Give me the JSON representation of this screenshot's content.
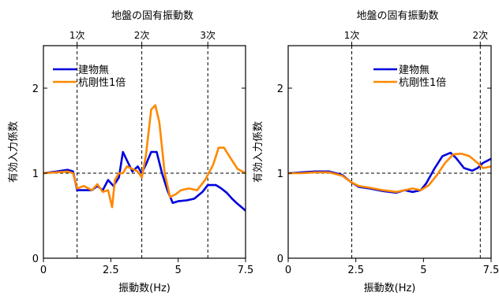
{
  "chart_data": [
    {
      "type": "line",
      "title": "地盤の固有振動数",
      "xlabel": "振動数(Hz)",
      "ylabel": "有効入力係数",
      "xlim": [
        0,
        7.5
      ],
      "ylim": [
        0,
        2.5
      ],
      "xticks": [
        0,
        2.5,
        5,
        7.5
      ],
      "xtick_labels": [
        "0",
        "2.5",
        "5",
        "7.5"
      ],
      "yticks": [
        0,
        1,
        2
      ],
      "ytick_labels": [
        "0",
        "1",
        "2"
      ],
      "reference_line_y": 1,
      "natural_frequencies": [
        {
          "x": 1.25,
          "label": "1次"
        },
        {
          "x": 3.65,
          "label": "2次"
        },
        {
          "x": 6.1,
          "label": "3次"
        }
      ],
      "legend_position": "top-left",
      "grid": false,
      "series": [
        {
          "name": "建物無",
          "color": "#0000dd",
          "x": [
            0,
            0.5,
            0.9,
            1.1,
            1.25,
            1.5,
            1.8,
            2.0,
            2.2,
            2.4,
            2.6,
            2.8,
            2.95,
            3.1,
            3.3,
            3.5,
            3.65,
            3.8,
            4.0,
            4.2,
            4.4,
            4.6,
            4.8,
            5.0,
            5.3,
            5.6,
            5.9,
            6.1,
            6.4,
            6.6,
            6.8,
            7.0,
            7.2,
            7.5
          ],
          "y": [
            1.0,
            1.02,
            1.04,
            1.02,
            0.8,
            0.8,
            0.8,
            0.85,
            0.8,
            0.92,
            0.85,
            0.95,
            1.25,
            1.15,
            1.02,
            1.08,
            1.0,
            1.1,
            1.25,
            1.25,
            1.0,
            0.8,
            0.65,
            0.67,
            0.68,
            0.7,
            0.78,
            0.86,
            0.86,
            0.82,
            0.77,
            0.7,
            0.64,
            0.56
          ]
        },
        {
          "name": "杭剛性1倍",
          "color": "#ff8800",
          "x": [
            0,
            0.5,
            0.9,
            1.1,
            1.25,
            1.5,
            1.8,
            2.0,
            2.2,
            2.4,
            2.55,
            2.65,
            2.8,
            2.95,
            3.1,
            3.3,
            3.5,
            3.65,
            3.8,
            4.0,
            4.15,
            4.3,
            4.5,
            4.7,
            4.9,
            5.1,
            5.4,
            5.7,
            6.0,
            6.3,
            6.5,
            6.7,
            6.9,
            7.2,
            7.5
          ],
          "y": [
            1.0,
            1.01,
            1.02,
            1.0,
            0.82,
            0.85,
            0.8,
            0.87,
            0.78,
            0.8,
            0.6,
            0.92,
            1.0,
            1.0,
            1.08,
            1.05,
            1.02,
            0.95,
            1.2,
            1.75,
            1.8,
            1.6,
            1.0,
            0.72,
            0.75,
            0.8,
            0.82,
            0.8,
            0.92,
            1.1,
            1.3,
            1.3,
            1.2,
            1.05,
            1.0
          ]
        }
      ]
    },
    {
      "type": "line",
      "title": "地盤の固有振動数",
      "xlabel": "振動数(Hz)",
      "ylabel": "有効入力係数",
      "xlim": [
        0,
        7.5
      ],
      "ylim": [
        0,
        2.5
      ],
      "xticks": [
        0,
        2.5,
        5,
        7.5
      ],
      "xtick_labels": [
        "0",
        "2.5",
        "5",
        "7.5"
      ],
      "yticks": [
        0,
        1,
        2
      ],
      "ytick_labels": [
        "0",
        "1",
        "2"
      ],
      "reference_line_y": 1,
      "natural_frequencies": [
        {
          "x": 2.35,
          "label": "1次"
        },
        {
          "x": 7.1,
          "label": "2次"
        }
      ],
      "legend_position": "top-center",
      "grid": false,
      "series": [
        {
          "name": "建物無",
          "color": "#0000dd",
          "x": [
            0,
            0.5,
            1.0,
            1.5,
            2.0,
            2.3,
            2.6,
            3.0,
            3.5,
            4.0,
            4.3,
            4.6,
            4.9,
            5.1,
            5.4,
            5.7,
            6.0,
            6.2,
            6.5,
            6.8,
            7.0,
            7.2,
            7.5
          ],
          "y": [
            1.0,
            1.01,
            1.02,
            1.02,
            0.98,
            0.9,
            0.84,
            0.82,
            0.79,
            0.77,
            0.8,
            0.78,
            0.8,
            0.88,
            1.05,
            1.2,
            1.24,
            1.18,
            1.06,
            1.03,
            1.06,
            1.12,
            1.17
          ]
        },
        {
          "name": "杭剛性1倍",
          "color": "#ff8800",
          "x": [
            0,
            0.5,
            1.0,
            1.5,
            2.0,
            2.3,
            2.6,
            3.0,
            3.5,
            4.0,
            4.3,
            4.6,
            4.9,
            5.2,
            5.5,
            5.8,
            6.1,
            6.4,
            6.7,
            7.0,
            7.2,
            7.5
          ],
          "y": [
            1.0,
            1.0,
            1.01,
            1.01,
            0.97,
            0.9,
            0.85,
            0.83,
            0.8,
            0.78,
            0.8,
            0.82,
            0.8,
            0.86,
            0.98,
            1.12,
            1.22,
            1.23,
            1.2,
            1.12,
            1.06,
            1.08
          ]
        }
      ]
    }
  ]
}
